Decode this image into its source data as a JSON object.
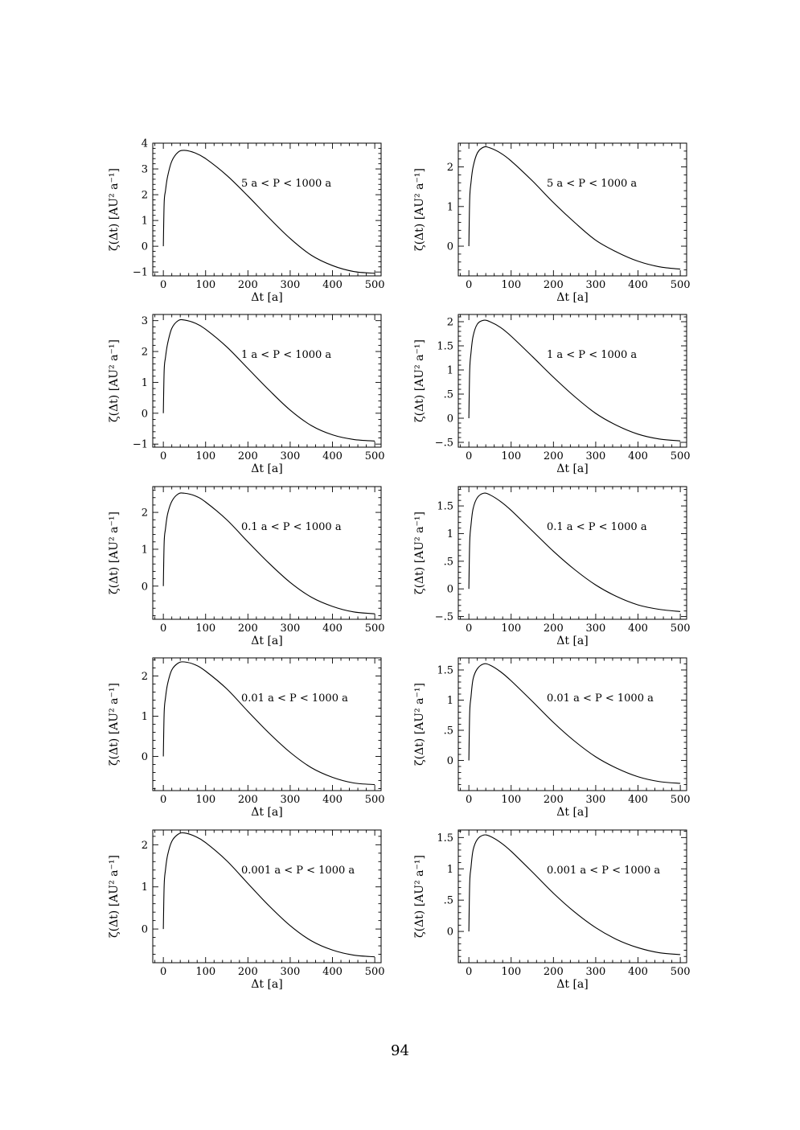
{
  "page_number": "94",
  "chart_data": [
    {
      "type": "line",
      "ylabel": "ζ(Δt) [AU² a⁻¹]",
      "xlabel": "Δt [a]",
      "annotation": "5 a  <  P  <  1000 a",
      "xlim": [
        -25,
        515
      ],
      "ylim": [
        -1.15,
        4.0
      ],
      "x_ticks": [
        0,
        100,
        200,
        300,
        400,
        500
      ],
      "y_ticks": [
        -1,
        0,
        1,
        2,
        3,
        4
      ],
      "y_tick_labels": [
        "−1",
        "0",
        "1",
        "2",
        "3",
        "4"
      ],
      "series": [
        {
          "x": [
            0,
            2,
            5,
            10,
            20,
            35,
            50,
            75,
            100,
            150,
            200,
            250,
            300,
            350,
            400,
            450,
            500
          ],
          "y": [
            0,
            1.7,
            2.15,
            2.7,
            3.3,
            3.65,
            3.72,
            3.62,
            3.4,
            2.75,
            1.95,
            1.1,
            0.3,
            -0.35,
            -0.75,
            -0.98,
            -1.05
          ]
        }
      ]
    },
    {
      "type": "line",
      "ylabel": "ζ(Δt) [AU² a⁻¹]",
      "xlabel": "Δt [a]",
      "annotation": "5 a  <  P  <  1000 a",
      "xlim": [
        -25,
        515
      ],
      "ylim": [
        -0.75,
        2.6
      ],
      "x_ticks": [
        0,
        100,
        200,
        300,
        400,
        500
      ],
      "y_ticks": [
        0,
        1,
        2
      ],
      "y_tick_labels": [
        "0",
        "1",
        "2"
      ],
      "series": [
        {
          "x": [
            0,
            2,
            5,
            10,
            20,
            35,
            50,
            75,
            100,
            150,
            200,
            250,
            300,
            350,
            400,
            450,
            500
          ],
          "y": [
            0,
            1.2,
            1.6,
            2.0,
            2.35,
            2.5,
            2.48,
            2.35,
            2.15,
            1.65,
            1.1,
            0.6,
            0.15,
            -0.15,
            -0.38,
            -0.52,
            -0.58
          ]
        }
      ]
    },
    {
      "type": "line",
      "ylabel": "ζ(Δt) [AU² a⁻¹]",
      "xlabel": "Δt [a]",
      "annotation": "1 a  <  P  <  1000 a",
      "xlim": [
        -25,
        515
      ],
      "ylim": [
        -1.1,
        3.2
      ],
      "x_ticks": [
        0,
        100,
        200,
        300,
        400,
        500
      ],
      "y_ticks": [
        -1,
        0,
        1,
        2,
        3
      ],
      "y_tick_labels": [
        "−1",
        "0",
        "1",
        "2",
        "3"
      ],
      "series": [
        {
          "x": [
            0,
            2,
            5,
            10,
            20,
            35,
            50,
            75,
            100,
            150,
            200,
            250,
            300,
            350,
            400,
            450,
            500
          ],
          "y": [
            0,
            1.4,
            1.8,
            2.25,
            2.75,
            3.0,
            3.02,
            2.92,
            2.72,
            2.15,
            1.45,
            0.75,
            0.1,
            -0.4,
            -0.7,
            -0.85,
            -0.9
          ]
        }
      ]
    },
    {
      "type": "line",
      "ylabel": "ζ(Δt) [AU² a⁻¹]",
      "xlabel": "Δt [a]",
      "annotation": "1 a  <  P  <  1000 a",
      "xlim": [
        -25,
        515
      ],
      "ylim": [
        -0.6,
        2.15
      ],
      "x_ticks": [
        0,
        100,
        200,
        300,
        400,
        500
      ],
      "y_ticks": [
        -0.5,
        0,
        0.5,
        1,
        1.5,
        2
      ],
      "y_tick_labels": [
        "−.5",
        "0",
        ".5",
        "1",
        "1.5",
        "2"
      ],
      "series": [
        {
          "x": [
            0,
            2,
            5,
            10,
            20,
            35,
            50,
            75,
            100,
            150,
            200,
            250,
            300,
            350,
            400,
            450,
            500
          ],
          "y": [
            0,
            1.0,
            1.35,
            1.7,
            1.95,
            2.03,
            2.0,
            1.88,
            1.7,
            1.28,
            0.85,
            0.45,
            0.1,
            -0.15,
            -0.33,
            -0.43,
            -0.47
          ]
        }
      ]
    },
    {
      "type": "line",
      "ylabel": "ζ(Δt) [AU² a⁻¹]",
      "xlabel": "Δt [a]",
      "annotation": "0.1 a  <  P  <  1000 a",
      "xlim": [
        -25,
        515
      ],
      "ylim": [
        -0.9,
        2.7
      ],
      "x_ticks": [
        0,
        100,
        200,
        300,
        400,
        500
      ],
      "y_ticks": [
        0,
        1,
        2
      ],
      "y_tick_labels": [
        "0",
        "1",
        "2"
      ],
      "series": [
        {
          "x": [
            0,
            2,
            5,
            10,
            20,
            35,
            50,
            75,
            100,
            150,
            200,
            250,
            300,
            350,
            400,
            450,
            500
          ],
          "y": [
            0,
            1.2,
            1.55,
            1.95,
            2.3,
            2.5,
            2.52,
            2.45,
            2.28,
            1.8,
            1.2,
            0.62,
            0.1,
            -0.3,
            -0.55,
            -0.7,
            -0.75
          ]
        }
      ]
    },
    {
      "type": "line",
      "ylabel": "ζ(Δt) [AU² a⁻¹]",
      "xlabel": "Δt [a]",
      "annotation": "0.1 a  <  P  <  1000 a",
      "xlim": [
        -25,
        515
      ],
      "ylim": [
        -0.55,
        1.85
      ],
      "x_ticks": [
        0,
        100,
        200,
        300,
        400,
        500
      ],
      "y_ticks": [
        -0.5,
        0,
        0.5,
        1,
        1.5
      ],
      "y_tick_labels": [
        "−.5",
        "0",
        ".5",
        "1",
        "1.5"
      ],
      "series": [
        {
          "x": [
            0,
            2,
            5,
            10,
            20,
            35,
            50,
            75,
            100,
            150,
            200,
            250,
            300,
            350,
            400,
            450,
            500
          ],
          "y": [
            0,
            0.85,
            1.15,
            1.45,
            1.65,
            1.73,
            1.7,
            1.58,
            1.42,
            1.05,
            0.68,
            0.35,
            0.07,
            -0.14,
            -0.29,
            -0.37,
            -0.41
          ]
        }
      ]
    },
    {
      "type": "line",
      "ylabel": "ζ(Δt) [AU² a⁻¹]",
      "xlabel": "Δt [a]",
      "annotation": "0.01 a  <  P  <  1000 a",
      "xlim": [
        -25,
        515
      ],
      "ylim": [
        -0.85,
        2.45
      ],
      "x_ticks": [
        0,
        100,
        200,
        300,
        400,
        500
      ],
      "y_ticks": [
        0,
        1,
        2
      ],
      "y_tick_labels": [
        "0",
        "1",
        "2"
      ],
      "series": [
        {
          "x": [
            0,
            2,
            5,
            10,
            20,
            35,
            50,
            75,
            100,
            150,
            200,
            250,
            300,
            350,
            400,
            450,
            500
          ],
          "y": [
            0,
            1.1,
            1.45,
            1.8,
            2.15,
            2.32,
            2.35,
            2.28,
            2.12,
            1.68,
            1.12,
            0.58,
            0.1,
            -0.28,
            -0.52,
            -0.66,
            -0.7
          ]
        }
      ]
    },
    {
      "type": "line",
      "ylabel": "ζ(Δt) [AU² a⁻¹]",
      "xlabel": "Δt [a]",
      "annotation": "0.01 a  <  P  <  1000 a",
      "xlim": [
        -25,
        515
      ],
      "ylim": [
        -0.5,
        1.7
      ],
      "x_ticks": [
        0,
        100,
        200,
        300,
        400,
        500
      ],
      "y_ticks": [
        0,
        0.5,
        1,
        1.5
      ],
      "y_tick_labels": [
        "0",
        ".5",
        "1",
        "1.5"
      ],
      "series": [
        {
          "x": [
            0,
            2,
            5,
            10,
            20,
            35,
            50,
            75,
            100,
            150,
            200,
            250,
            300,
            350,
            400,
            450,
            500
          ],
          "y": [
            0,
            0.8,
            1.05,
            1.35,
            1.52,
            1.6,
            1.58,
            1.47,
            1.32,
            0.98,
            0.63,
            0.32,
            0.06,
            -0.13,
            -0.27,
            -0.35,
            -0.38
          ]
        }
      ]
    },
    {
      "type": "line",
      "ylabel": "ζ(Δt) [AU² a⁻¹]",
      "xlabel": "Δt [a]",
      "annotation": "0.001 a  <  P  <  1000 a",
      "xlim": [
        -25,
        515
      ],
      "ylim": [
        -0.8,
        2.35
      ],
      "x_ticks": [
        0,
        100,
        200,
        300,
        400,
        500
      ],
      "y_ticks": [
        0,
        1,
        2
      ],
      "y_tick_labels": [
        "0",
        "1",
        "2"
      ],
      "series": [
        {
          "x": [
            0,
            2,
            5,
            10,
            20,
            35,
            50,
            75,
            100,
            150,
            200,
            250,
            300,
            350,
            400,
            450,
            500
          ],
          "y": [
            0,
            1.05,
            1.4,
            1.75,
            2.08,
            2.25,
            2.28,
            2.2,
            2.05,
            1.62,
            1.08,
            0.55,
            0.08,
            -0.28,
            -0.5,
            -0.62,
            -0.66
          ]
        }
      ]
    },
    {
      "type": "line",
      "ylabel": "ζ(Δt) [AU² a⁻¹]",
      "xlabel": "Δt [a]",
      "annotation": "0.001 a  <  P  <  1000 a",
      "xlim": [
        -25,
        515
      ],
      "ylim": [
        -0.5,
        1.62
      ],
      "x_ticks": [
        0,
        100,
        200,
        300,
        400,
        500
      ],
      "y_ticks": [
        0,
        0.5,
        1,
        1.5
      ],
      "y_tick_labels": [
        "0",
        ".5",
        "1",
        "1.5"
      ],
      "series": [
        {
          "x": [
            0,
            2,
            5,
            10,
            20,
            35,
            50,
            75,
            100,
            150,
            200,
            250,
            300,
            350,
            400,
            450,
            500
          ],
          "y": [
            0,
            0.78,
            1.02,
            1.3,
            1.47,
            1.54,
            1.52,
            1.42,
            1.28,
            0.95,
            0.61,
            0.31,
            0.06,
            -0.13,
            -0.26,
            -0.34,
            -0.37
          ]
        }
      ]
    }
  ]
}
